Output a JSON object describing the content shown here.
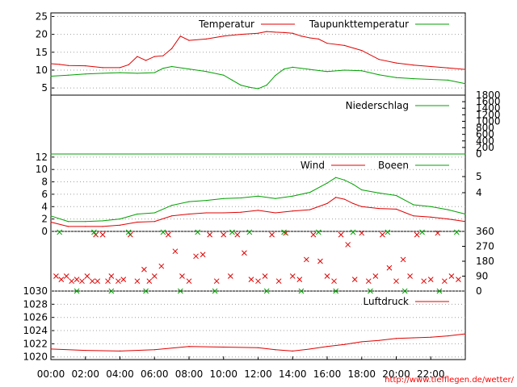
{
  "chart_data": [
    {
      "type": "line",
      "ylim": [
        3,
        26
      ],
      "yticks": [
        "5",
        "10",
        "15",
        "20",
        "25"
      ],
      "grid": true,
      "legend_position": "top-right",
      "x_unit": "hours",
      "series": [
        {
          "name": "Temperatur",
          "color": "#e00000",
          "x": [
            0,
            0.5,
            1,
            2,
            3,
            4,
            4.5,
            5,
            5.5,
            6,
            6.5,
            7,
            7.5,
            8,
            9,
            10,
            11,
            12,
            12.5,
            13,
            13.5,
            14,
            14.5,
            15,
            15.5,
            16,
            17,
            18,
            19,
            20,
            21,
            22,
            23,
            24
          ],
          "values": [
            11.8,
            11.6,
            11.3,
            11.2,
            10.7,
            10.7,
            11.5,
            13.8,
            12.7,
            13.8,
            14.0,
            16.0,
            19.5,
            18.3,
            18.7,
            19.5,
            20.0,
            20.3,
            20.8,
            20.6,
            20.5,
            20.3,
            19.5,
            19.0,
            18.7,
            17.5,
            16.9,
            15.5,
            13.0,
            12.0,
            11.4,
            11.0,
            10.6,
            10.2
          ]
        },
        {
          "name": "Taupunkttemperatur",
          "color": "#00a000",
          "x": [
            0,
            1,
            2,
            3,
            4,
            5,
            6,
            6.5,
            7,
            8,
            9,
            10,
            10.5,
            11,
            11.5,
            12,
            12.5,
            13,
            13.5,
            14,
            15,
            16,
            17,
            18,
            19,
            20,
            21,
            22,
            23,
            24
          ],
          "values": [
            8.3,
            8.6,
            8.9,
            9.1,
            9.3,
            9.1,
            9.3,
            10.5,
            11.0,
            10.3,
            9.6,
            8.6,
            7.2,
            5.8,
            5.2,
            4.8,
            5.8,
            8.5,
            10.3,
            10.8,
            10.2,
            9.6,
            10.0,
            9.8,
            8.7,
            7.9,
            7.6,
            7.4,
            7.2,
            6.2
          ]
        }
      ]
    },
    {
      "type": "line",
      "ylim": [
        0,
        1800
      ],
      "yticks": [
        "0",
        "200",
        "400",
        "600",
        "800",
        "1000",
        "1200",
        "1400",
        "1600",
        "1800"
      ],
      "legend_position": "top-right",
      "series": [
        {
          "name": "Niederschlag",
          "color": "#00a000",
          "x": [
            0,
            24
          ],
          "values": [
            0,
            0
          ]
        }
      ]
    },
    {
      "type": "line",
      "ylim": [
        0,
        12.5
      ],
      "yticks": [
        "0",
        "2",
        "4",
        "6",
        "8",
        "10",
        "12"
      ],
      "right_ticks": [
        "4",
        "5"
      ],
      "grid": true,
      "legend_position": "top-right",
      "series": [
        {
          "name": "Wind",
          "color": "#e00000",
          "x": [
            0,
            1,
            2,
            3,
            4,
            5,
            6,
            7,
            8,
            9,
            10,
            11,
            12,
            13,
            14,
            15,
            16,
            16.5,
            17,
            17.5,
            18,
            19,
            20,
            21,
            22,
            23,
            24
          ],
          "values": [
            1.5,
            0.8,
            0.8,
            0.8,
            1.0,
            1.5,
            1.6,
            2.5,
            2.8,
            3.0,
            3.0,
            3.1,
            3.4,
            3.0,
            3.3,
            3.5,
            4.5,
            5.5,
            5.2,
            4.5,
            4.0,
            3.7,
            3.6,
            2.5,
            2.3,
            2.0,
            1.6
          ]
        },
        {
          "name": "Boeen",
          "color": "#00a000",
          "x": [
            0,
            1,
            2,
            3,
            4,
            5,
            6,
            7,
            8,
            9,
            10,
            11,
            12,
            13,
            14,
            15,
            16,
            16.5,
            17,
            17.5,
            18,
            19,
            20,
            21,
            22,
            23,
            24
          ],
          "values": [
            2.5,
            1.6,
            1.6,
            1.7,
            2.0,
            2.8,
            3.0,
            4.2,
            4.8,
            5.0,
            5.3,
            5.4,
            5.7,
            5.3,
            5.7,
            6.3,
            7.8,
            8.7,
            8.3,
            7.6,
            6.7,
            6.2,
            5.8,
            4.3,
            4.0,
            3.5,
            2.8
          ]
        }
      ]
    },
    {
      "type": "scatter",
      "ylim": [
        0,
        360
      ],
      "right_ticks": [
        "0",
        "90",
        "180",
        "270",
        "360"
      ],
      "series": [
        {
          "color": "#e00000",
          "x": [
            0.3,
            0.6,
            0.9,
            1.2,
            1.5,
            1.8,
            2.1,
            2.4,
            2.6,
            2.7,
            3.0,
            3.3,
            3.5,
            3.9,
            4.2,
            4.6,
            5.0,
            5.4,
            5.7,
            6.0,
            6.4,
            6.8,
            7.2,
            7.6,
            8.0,
            8.4,
            8.8,
            9.2,
            9.6,
            10.0,
            10.4,
            10.8,
            11.2,
            11.6,
            12.0,
            12.4,
            12.8,
            13.2,
            13.6,
            14.0,
            14.4,
            14.8,
            15.2,
            15.6,
            16.0,
            16.4,
            16.8,
            17.2,
            17.6,
            18.0,
            18.4,
            18.8,
            19.2,
            19.6,
            20.0,
            20.4,
            20.8,
            21.2,
            21.6,
            22.0,
            22.4,
            22.8,
            23.2,
            23.6
          ],
          "values": [
            90,
            70,
            90,
            60,
            70,
            60,
            90,
            60,
            340,
            60,
            340,
            60,
            90,
            60,
            70,
            340,
            60,
            130,
            60,
            90,
            150,
            340,
            240,
            90,
            60,
            210,
            220,
            340,
            60,
            340,
            90,
            340,
            230,
            70,
            60,
            90,
            340,
            60,
            350,
            90,
            70,
            190,
            340,
            180,
            90,
            60,
            340,
            280,
            70,
            350,
            60,
            90,
            340,
            140,
            60,
            190,
            90,
            340,
            60,
            70,
            350,
            60,
            90,
            70
          ]
        },
        {
          "color": "#00a000",
          "x": [
            0.5,
            1.5,
            2.5,
            3.5,
            4.5,
            5.5,
            6.5,
            7.5,
            8.5,
            9.5,
            10.5,
            11.5,
            12.5,
            13.5,
            14.5,
            15.5,
            16.5,
            17.5,
            18.5,
            19.5,
            20.5,
            21.5,
            22.5,
            23.5
          ],
          "values": [
            355,
            0,
            355,
            0,
            355,
            0,
            355,
            0,
            355,
            0,
            355,
            355,
            0,
            355,
            0,
            355,
            0,
            355,
            0,
            355,
            0,
            355,
            0,
            355
          ]
        }
      ]
    },
    {
      "type": "line",
      "ylim": [
        1019.6,
        1030
      ],
      "yticks": [
        "1020",
        "1022",
        "1024",
        "1026",
        "1028",
        "1030"
      ],
      "grid": true,
      "legend_position": "top-right",
      "series": [
        {
          "name": "Luftdruck",
          "color": "#e00000",
          "x": [
            0,
            2,
            4,
            6,
            8,
            10,
            12,
            13,
            14,
            15,
            16,
            17,
            18,
            19,
            20,
            21,
            22,
            23,
            24
          ],
          "values": [
            1021.2,
            1021.0,
            1020.9,
            1021.1,
            1021.6,
            1021.5,
            1021.4,
            1021.1,
            1020.9,
            1021.2,
            1021.6,
            1021.9,
            1022.3,
            1022.5,
            1022.8,
            1022.9,
            1023.0,
            1023.2,
            1023.5
          ]
        }
      ]
    }
  ],
  "x_tick_labels": [
    "00:00",
    "02:00",
    "04:00",
    "06:00",
    "08:00",
    "10:00",
    "12:00",
    "14:00",
    "16:00",
    "18:00",
    "20:00",
    "22:00"
  ],
  "source_text": "http://www.tiefflegen.de/wetter/"
}
